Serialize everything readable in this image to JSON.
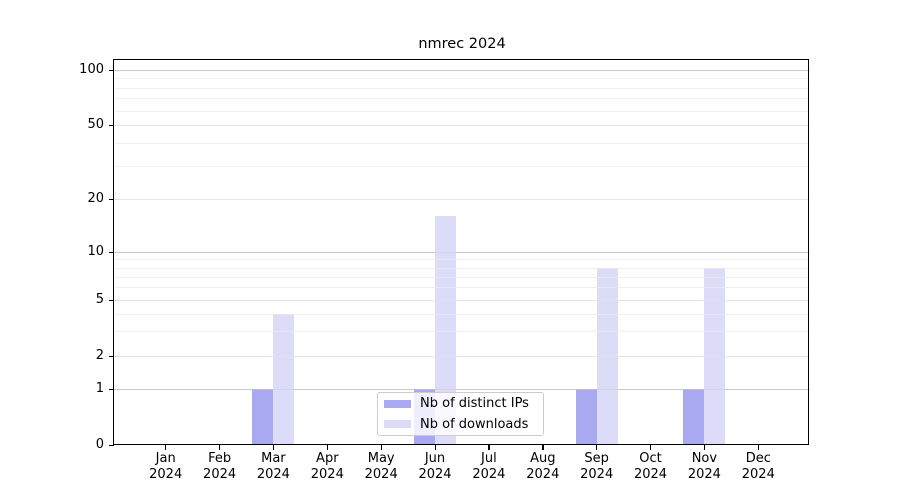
{
  "chart_data": {
    "type": "bar",
    "title": "nmrec 2024",
    "yscale": "symlog",
    "categories": [
      "Jan 2024",
      "Feb 2024",
      "Mar 2024",
      "Apr 2024",
      "May 2024",
      "Jun 2024",
      "Jul 2024",
      "Aug 2024",
      "Sep 2024",
      "Oct 2024",
      "Nov 2024",
      "Dec 2024"
    ],
    "series": [
      {
        "name": "Nb of distinct IPs",
        "color": "#a9a9f2",
        "values": [
          0,
          0,
          1,
          0,
          0,
          1,
          0,
          0,
          1,
          0,
          1,
          0
        ]
      },
      {
        "name": "Nb of downloads",
        "color": "#dcdcf9",
        "values": [
          0,
          0,
          4,
          0,
          0,
          16,
          0,
          0,
          8,
          0,
          8,
          0
        ]
      }
    ],
    "yticks": [
      0,
      1,
      2,
      5,
      10,
      20,
      50,
      100
    ],
    "ylim": [
      0,
      110
    ],
    "grid": "on",
    "legend_position": "bottom-center",
    "background_color": "#ffffff",
    "axis_color": "#000000"
  }
}
